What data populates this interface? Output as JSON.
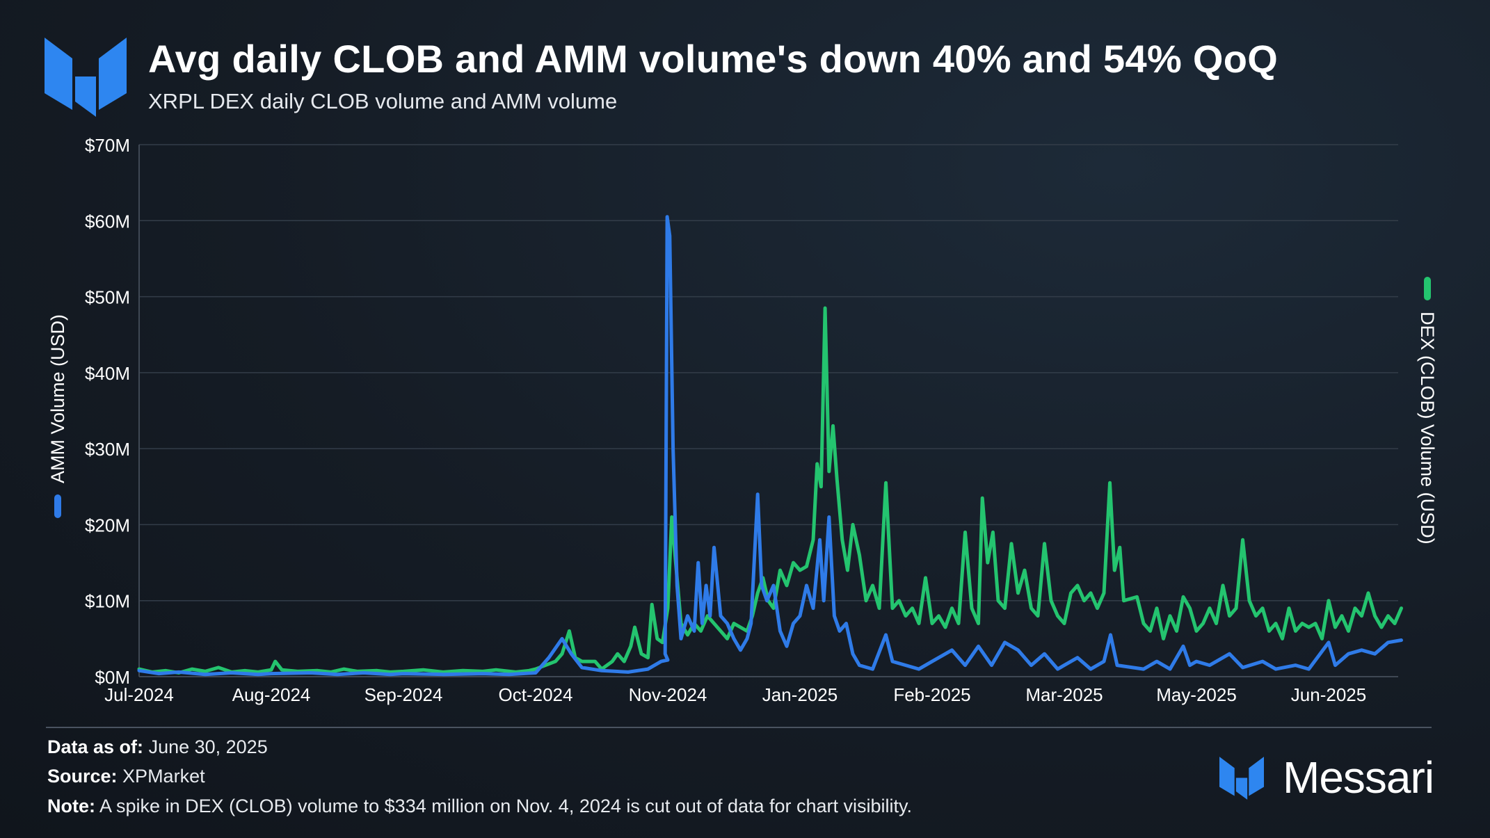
{
  "header": {
    "title": "Avg daily CLOB and AMM volume's down 40% and 54% QoQ",
    "subtitle": "XRPL DEX daily CLOB volume and AMM volume"
  },
  "footer": {
    "data_as_of_label": "Data as of:",
    "data_as_of_value": "June 30, 2025",
    "source_label": "Source:",
    "source_value": "XPMarket",
    "note_label": "Note:",
    "note_value": "A spike in DEX (CLOB) volume to $334 million on Nov. 4, 2024 is cut out of data for chart visibility.",
    "brand": "Messari"
  },
  "colors": {
    "amm": "#2f7be8",
    "dex": "#24c46f",
    "logo": "#2e86f0",
    "grid": "#333d49",
    "axis": "#3f4854"
  },
  "chart_data": {
    "type": "line",
    "ylim": [
      0,
      70
    ],
    "y_unit": "$M",
    "yticks": [
      "$0M",
      "$10M",
      "$20M",
      "$30M",
      "$40M",
      "$50M",
      "$60M",
      "$70M"
    ],
    "xticks": [
      "Jul-2024",
      "Aug-2024",
      "Sep-2024",
      "Oct-2024",
      "Nov-2024",
      "Jan-2025",
      "Feb-2025",
      "Mar-2025",
      "May-2025",
      "Jun-2025"
    ],
    "left_axis_label": "AMM Volume (USD)",
    "right_axis_label": "DEX (CLOB) Volume (USD)",
    "grid": true,
    "series": [
      {
        "name": "AMM Volume (USD)",
        "key": "amm",
        "points": [
          [
            "Jul-2024",
            0.8
          ],
          [
            0.15,
            0.4
          ],
          [
            0.3,
            0.6
          ],
          [
            0.5,
            0.3
          ],
          [
            0.7,
            0.5
          ],
          [
            0.9,
            0.3
          ],
          [
            "Aug-2024",
            0.4
          ],
          [
            1.3,
            0.5
          ],
          [
            1.5,
            0.3
          ],
          [
            1.7,
            0.5
          ],
          [
            1.9,
            0.3
          ],
          [
            "Sep-2024",
            0.4
          ],
          [
            2.3,
            0.3
          ],
          [
            2.6,
            0.4
          ],
          [
            2.8,
            0.3
          ],
          [
            "Oct-2024",
            0.5
          ],
          [
            3.1,
            2.5
          ],
          [
            3.2,
            5.0
          ],
          [
            3.27,
            3.0
          ],
          [
            3.35,
            1.2
          ],
          [
            3.5,
            0.8
          ],
          [
            3.7,
            0.6
          ],
          [
            3.85,
            1.0
          ],
          [
            3.95,
            2.0
          ],
          [
            "Nov-2024",
            2.2
          ],
          [
            3.98,
            3.0
          ],
          [
            3.995,
            60.5
          ],
          [
            4.015,
            58.0
          ],
          [
            4.04,
            30.0
          ],
          [
            4.07,
            12.0
          ],
          [
            4.1,
            5.0
          ],
          [
            4.15,
            8.0
          ],
          [
            4.2,
            6.0
          ],
          [
            4.23,
            15.0
          ],
          [
            4.26,
            7.0
          ],
          [
            4.29,
            12.0
          ],
          [
            4.32,
            8.0
          ],
          [
            4.35,
            17.0
          ],
          [
            4.4,
            8.0
          ],
          [
            4.45,
            7.0
          ],
          [
            4.5,
            5.0
          ],
          [
            4.55,
            3.5
          ],
          [
            4.6,
            5.0
          ],
          [
            4.63,
            7.0
          ],
          [
            4.68,
            24.0
          ],
          [
            4.71,
            12.0
          ],
          [
            4.75,
            10.0
          ],
          [
            4.8,
            12.0
          ],
          [
            4.85,
            6.0
          ],
          [
            4.9,
            4.0
          ],
          [
            4.95,
            7.0
          ],
          [
            "Jan-2025",
            8.0
          ],
          [
            5.05,
            12.0
          ],
          [
            5.1,
            9.0
          ],
          [
            5.15,
            18.0
          ],
          [
            5.18,
            10.0
          ],
          [
            5.22,
            21.0
          ],
          [
            5.26,
            8.0
          ],
          [
            5.3,
            6.0
          ],
          [
            5.35,
            7.0
          ],
          [
            5.4,
            3.0
          ],
          [
            5.45,
            1.5
          ],
          [
            5.55,
            1.0
          ],
          [
            5.65,
            5.5
          ],
          [
            5.7,
            2.0
          ],
          [
            5.8,
            1.5
          ],
          [
            5.9,
            1.0
          ],
          [
            "Feb-2025",
            2.0
          ],
          [
            6.15,
            3.5
          ],
          [
            6.25,
            1.5
          ],
          [
            6.35,
            4.0
          ],
          [
            6.45,
            1.5
          ],
          [
            6.55,
            4.5
          ],
          [
            6.65,
            3.5
          ],
          [
            6.75,
            1.5
          ],
          [
            6.85,
            3.0
          ],
          [
            6.95,
            1.0
          ],
          [
            "Mar-2025",
            1.5
          ],
          [
            7.1,
            2.5
          ],
          [
            7.2,
            1.0
          ],
          [
            7.3,
            2.0
          ],
          [
            7.35,
            5.5
          ],
          [
            7.4,
            1.5
          ],
          [
            7.6,
            1.0
          ],
          [
            7.7,
            2.0
          ],
          [
            7.8,
            1.0
          ],
          [
            7.9,
            4.0
          ],
          [
            7.95,
            1.5
          ],
          [
            "May-2025",
            2.0
          ],
          [
            8.1,
            1.5
          ],
          [
            8.25,
            3.0
          ],
          [
            8.35,
            1.2
          ],
          [
            8.5,
            2.0
          ],
          [
            8.6,
            1.0
          ],
          [
            8.75,
            1.5
          ],
          [
            8.85,
            1.0
          ],
          [
            "Jun-2025",
            4.5
          ],
          [
            9.05,
            1.5
          ],
          [
            9.15,
            3.0
          ],
          [
            9.25,
            3.5
          ],
          [
            9.35,
            3.0
          ],
          [
            9.45,
            4.5
          ],
          [
            9.55,
            4.8
          ]
        ]
      },
      {
        "name": "DEX (CLOB) Volume (USD)",
        "key": "dex",
        "points": [
          [
            "Jul-2024",
            1.0
          ],
          [
            0.1,
            0.6
          ],
          [
            0.2,
            0.8
          ],
          [
            0.3,
            0.5
          ],
          [
            0.4,
            1.0
          ],
          [
            0.5,
            0.7
          ],
          [
            0.6,
            1.2
          ],
          [
            0.7,
            0.6
          ],
          [
            0.8,
            0.8
          ],
          [
            0.9,
            0.6
          ],
          [
            "Aug-2024",
            0.9
          ],
          [
            1.03,
            2.0
          ],
          [
            1.08,
            0.9
          ],
          [
            1.2,
            0.7
          ],
          [
            1.35,
            0.8
          ],
          [
            1.45,
            0.6
          ],
          [
            1.55,
            1.0
          ],
          [
            1.65,
            0.7
          ],
          [
            1.8,
            0.8
          ],
          [
            1.9,
            0.6
          ],
          [
            "Sep-2024",
            0.7
          ],
          [
            2.15,
            0.9
          ],
          [
            2.3,
            0.6
          ],
          [
            2.45,
            0.8
          ],
          [
            2.6,
            0.7
          ],
          [
            2.7,
            0.9
          ],
          [
            2.85,
            0.6
          ],
          [
            2.95,
            0.8
          ],
          [
            "Oct-2024",
            1.0
          ],
          [
            3.15,
            2.0
          ],
          [
            3.2,
            3.0
          ],
          [
            3.255,
            6.0
          ],
          [
            3.3,
            2.5
          ],
          [
            3.35,
            2.0
          ],
          [
            3.45,
            2.0
          ],
          [
            3.5,
            1.0
          ],
          [
            3.58,
            2.0
          ],
          [
            3.62,
            3.0
          ],
          [
            3.67,
            2.0
          ],
          [
            3.72,
            4.0
          ],
          [
            3.75,
            6.5
          ],
          [
            3.8,
            3.0
          ],
          [
            3.85,
            2.5
          ],
          [
            3.88,
            9.5
          ],
          [
            3.92,
            5.0
          ],
          [
            3.96,
            4.5
          ],
          [
            "Nov-2024",
            9.0
          ],
          [
            4.03,
            21.0
          ],
          [
            4.06,
            15.0
          ],
          [
            4.1,
            7.0
          ],
          [
            4.15,
            5.5
          ],
          [
            4.2,
            7.0
          ],
          [
            4.25,
            6.0
          ],
          [
            4.3,
            8.0
          ],
          [
            4.35,
            7.0
          ],
          [
            4.4,
            6.0
          ],
          [
            4.45,
            5.0
          ],
          [
            4.5,
            7.0
          ],
          [
            4.55,
            6.5
          ],
          [
            4.6,
            6.0
          ],
          [
            4.64,
            8.0
          ],
          [
            4.68,
            11.0
          ],
          [
            4.72,
            13.0
          ],
          [
            4.76,
            10.0
          ],
          [
            4.8,
            9.0
          ],
          [
            4.85,
            14.0
          ],
          [
            4.9,
            12.0
          ],
          [
            4.95,
            15.0
          ],
          [
            "Jan-2025",
            14.0
          ],
          [
            5.05,
            14.5
          ],
          [
            5.1,
            18.0
          ],
          [
            5.13,
            28.0
          ],
          [
            5.16,
            25.0
          ],
          [
            5.19,
            48.5
          ],
          [
            5.22,
            27.0
          ],
          [
            5.25,
            33.0
          ],
          [
            5.28,
            26.0
          ],
          [
            5.32,
            18.0
          ],
          [
            5.36,
            14.0
          ],
          [
            5.4,
            20.0
          ],
          [
            5.45,
            16.0
          ],
          [
            5.5,
            10.0
          ],
          [
            5.55,
            12.0
          ],
          [
            5.6,
            9.0
          ],
          [
            5.65,
            25.5
          ],
          [
            5.7,
            9.0
          ],
          [
            5.75,
            10.0
          ],
          [
            5.8,
            8.0
          ],
          [
            5.85,
            9.0
          ],
          [
            5.9,
            7.0
          ],
          [
            5.95,
            13.0
          ],
          [
            "Feb-2025",
            7.0
          ],
          [
            6.05,
            8.0
          ],
          [
            6.1,
            6.5
          ],
          [
            6.15,
            9.0
          ],
          [
            6.2,
            7.0
          ],
          [
            6.25,
            19.0
          ],
          [
            6.3,
            9.0
          ],
          [
            6.35,
            7.0
          ],
          [
            6.38,
            23.5
          ],
          [
            6.42,
            15.0
          ],
          [
            6.46,
            19.0
          ],
          [
            6.5,
            10.0
          ],
          [
            6.55,
            9.0
          ],
          [
            6.6,
            17.5
          ],
          [
            6.65,
            11.0
          ],
          [
            6.7,
            14.0
          ],
          [
            6.75,
            9.0
          ],
          [
            6.8,
            8.0
          ],
          [
            6.85,
            17.5
          ],
          [
            6.9,
            10.0
          ],
          [
            6.95,
            8.0
          ],
          [
            "Mar-2025",
            7.0
          ],
          [
            7.05,
            11.0
          ],
          [
            7.1,
            12.0
          ],
          [
            7.15,
            10.0
          ],
          [
            7.2,
            11.0
          ],
          [
            7.25,
            9.0
          ],
          [
            7.3,
            11.0
          ],
          [
            7.345,
            25.5
          ],
          [
            7.38,
            14.0
          ],
          [
            7.42,
            17.0
          ],
          [
            7.45,
            10.0
          ],
          [
            7.55,
            10.5
          ],
          [
            7.6,
            7.0
          ],
          [
            7.65,
            6.0
          ],
          [
            7.7,
            9.0
          ],
          [
            7.75,
            5.0
          ],
          [
            7.8,
            8.0
          ],
          [
            7.85,
            6.0
          ],
          [
            7.9,
            10.5
          ],
          [
            7.95,
            9.0
          ],
          [
            "May-2025",
            6.0
          ],
          [
            8.05,
            7.0
          ],
          [
            8.1,
            9.0
          ],
          [
            8.15,
            7.0
          ],
          [
            8.2,
            12.0
          ],
          [
            8.25,
            8.0
          ],
          [
            8.3,
            9.0
          ],
          [
            8.35,
            18.0
          ],
          [
            8.4,
            10.0
          ],
          [
            8.45,
            8.0
          ],
          [
            8.5,
            9.0
          ],
          [
            8.55,
            6.0
          ],
          [
            8.6,
            7.0
          ],
          [
            8.65,
            5.0
          ],
          [
            8.7,
            9.0
          ],
          [
            8.75,
            6.0
          ],
          [
            8.8,
            7.0
          ],
          [
            8.85,
            6.5
          ],
          [
            8.9,
            7.0
          ],
          [
            8.95,
            5.0
          ],
          [
            "Jun-2025",
            10.0
          ],
          [
            9.05,
            6.5
          ],
          [
            9.1,
            8.0
          ],
          [
            9.15,
            6.0
          ],
          [
            9.2,
            9.0
          ],
          [
            9.25,
            8.0
          ],
          [
            9.3,
            11.0
          ],
          [
            9.35,
            8.0
          ],
          [
            9.4,
            6.5
          ],
          [
            9.45,
            8.0
          ],
          [
            9.5,
            7.0
          ],
          [
            9.55,
            9.0
          ]
        ]
      }
    ]
  }
}
